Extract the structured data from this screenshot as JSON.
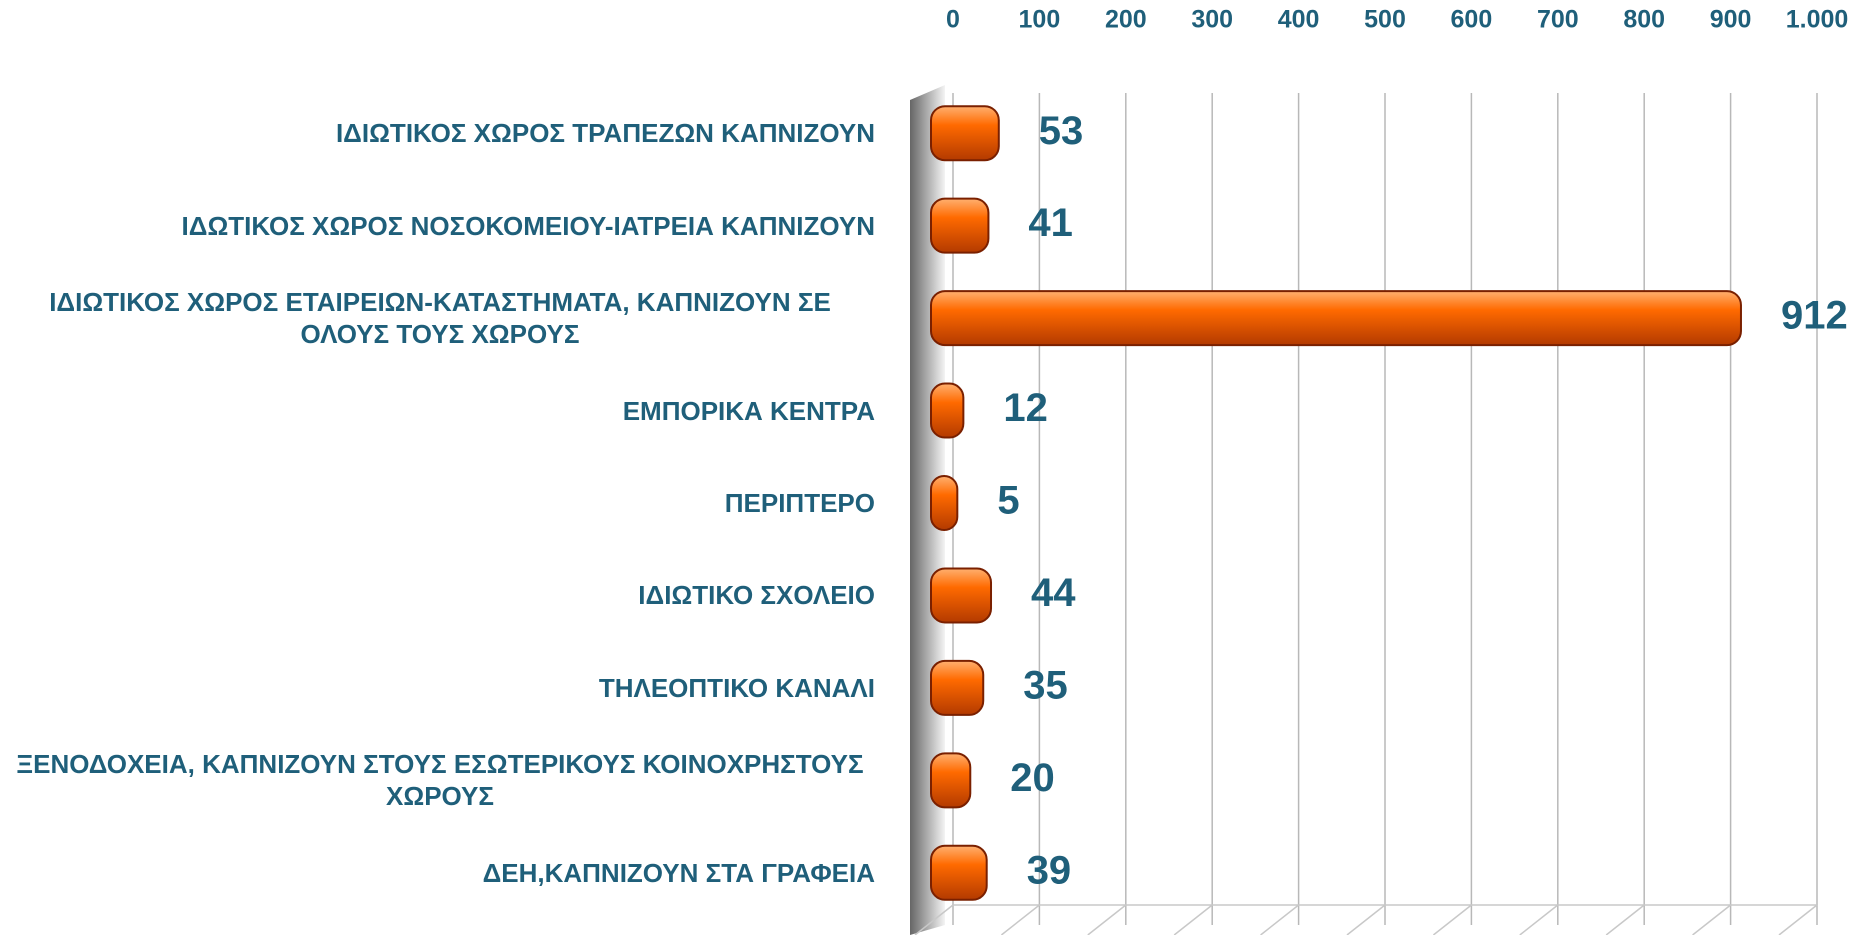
{
  "chart_data": {
    "type": "bar",
    "orientation": "horizontal",
    "categories": [
      "ΙΔΙΩΤΙΚΟΣ ΧΩΡΟΣ ΤΡΑΠΕΖΩΝ ΚΑΠΝΙΖΟΥΝ",
      "ΙΔΩΤΙΚΟΣ ΧΩΡΟΣ ΝΟΣΟΚΟΜΕΙΟΥ-ΙΑΤΡΕΙΑ  ΚΑΠΝΙΖΟΥΝ",
      "ΙΔΙΩΤΙΚΟΣ ΧΩΡΟΣ ΕΤΑΙΡΕΙΩΝ-ΚΑΤΑΣΤΗΜΑΤΑ, ΚΑΠΝΙΖΟΥΝ ΣΕ ΟΛΟΥΣ ΤΟΥΣ ΧΩΡΟΥΣ",
      "ΕΜΠΟΡΙΚΑ ΚΕΝΤΡΑ",
      "ΠΕΡΙΠΤΕΡΟ",
      "ΙΔΙΩΤΙΚΟ ΣΧΟΛΕΙΟ",
      "ΤΗΛΕΟΠΤΙΚΟ ΚΑΝΑΛΙ",
      "ΞΕΝΟΔΟΧΕΙΑ, ΚΑΠΝΙΖΟΥΝ ΣΤΟΥΣ ΕΣΩΤΕΡΙΚΟΥΣ ΚΟΙΝΟΧΡΗΣΤΟΥΣ ΧΩΡΟΥΣ",
      "ΔΕΗ,ΚΑΠΝΙΖΟΥΝ ΣΤΑ ΓΡΑΦΕΙΑ"
    ],
    "values": [
      53,
      41,
      912,
      12,
      5,
      44,
      35,
      20,
      39
    ],
    "color": "#ff6a00",
    "xlim": [
      0,
      1000
    ],
    "xticks": [
      0,
      100,
      200,
      300,
      400,
      500,
      600,
      700,
      800,
      900,
      {
        "value": 1000,
        "label": "1.000"
      }
    ],
    "grid": true
  }
}
